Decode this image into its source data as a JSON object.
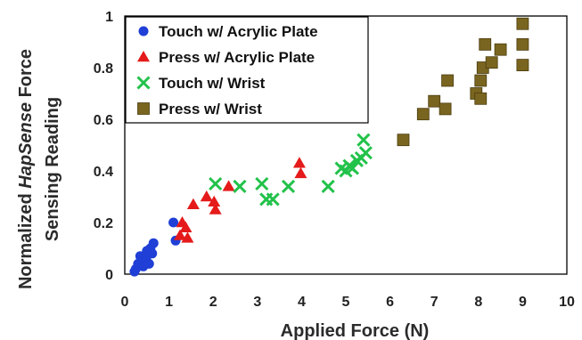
{
  "chart_data": {
    "type": "scatter",
    "title": "",
    "xlabel": "Applied Force (N)",
    "ylabel_parts": {
      "line1_prefix": "Normalized ",
      "line1_italic": "HapSense",
      "line1_suffix": " Force",
      "line2": "Sensing Reading"
    },
    "xlim": [
      0,
      10
    ],
    "ylim": [
      0,
      1
    ],
    "xticks": [
      "0",
      "1",
      "2",
      "3",
      "4",
      "5",
      "6",
      "7",
      "8",
      "9",
      "10"
    ],
    "yticks": [
      "0",
      "0.2",
      "0.4",
      "0.6",
      "0.8",
      "1"
    ],
    "grid": false,
    "legend_position": "top-left",
    "series": [
      {
        "name": "Touch w/ Acrylic Plate",
        "marker": "circle",
        "color": "#1f3fd6",
        "points": [
          [
            0.22,
            0.01
          ],
          [
            0.25,
            0.02
          ],
          [
            0.3,
            0.04
          ],
          [
            0.35,
            0.07
          ],
          [
            0.42,
            0.03
          ],
          [
            0.48,
            0.06
          ],
          [
            0.5,
            0.09
          ],
          [
            0.55,
            0.04
          ],
          [
            0.58,
            0.1
          ],
          [
            0.62,
            0.08
          ],
          [
            0.65,
            0.12
          ],
          [
            1.1,
            0.2
          ],
          [
            1.15,
            0.13
          ]
        ]
      },
      {
        "name": "Press w/ Acrylic Plate",
        "marker": "triangle",
        "color": "#e51a1a",
        "points": [
          [
            1.25,
            0.15
          ],
          [
            1.3,
            0.2
          ],
          [
            1.38,
            0.18
          ],
          [
            1.42,
            0.14
          ],
          [
            1.55,
            0.27
          ],
          [
            1.85,
            0.3
          ],
          [
            2.02,
            0.28
          ],
          [
            2.05,
            0.25
          ],
          [
            2.35,
            0.34
          ],
          [
            3.95,
            0.43
          ],
          [
            3.98,
            0.39
          ]
        ]
      },
      {
        "name": "Touch w/ Wrist",
        "marker": "x",
        "color": "#22c24a",
        "points": [
          [
            2.05,
            0.35
          ],
          [
            2.6,
            0.34
          ],
          [
            3.1,
            0.35
          ],
          [
            3.2,
            0.29
          ],
          [
            3.35,
            0.29
          ],
          [
            3.7,
            0.34
          ],
          [
            4.6,
            0.34
          ],
          [
            4.9,
            0.41
          ],
          [
            5.0,
            0.4
          ],
          [
            5.08,
            0.42
          ],
          [
            5.15,
            0.41
          ],
          [
            5.25,
            0.44
          ],
          [
            5.35,
            0.45
          ],
          [
            5.4,
            0.52
          ],
          [
            5.45,
            0.47
          ]
        ]
      },
      {
        "name": "Press w/ Wrist",
        "marker": "square",
        "color": "#7a6520",
        "points": [
          [
            6.3,
            0.52
          ],
          [
            6.75,
            0.62
          ],
          [
            7.0,
            0.67
          ],
          [
            7.25,
            0.64
          ],
          [
            7.3,
            0.75
          ],
          [
            7.95,
            0.7
          ],
          [
            8.05,
            0.68
          ],
          [
            8.05,
            0.75
          ],
          [
            8.1,
            0.8
          ],
          [
            8.15,
            0.89
          ],
          [
            8.3,
            0.82
          ],
          [
            8.5,
            0.87
          ],
          [
            9.0,
            0.97
          ],
          [
            9.0,
            0.89
          ],
          [
            9.0,
            0.81
          ]
        ]
      }
    ]
  }
}
